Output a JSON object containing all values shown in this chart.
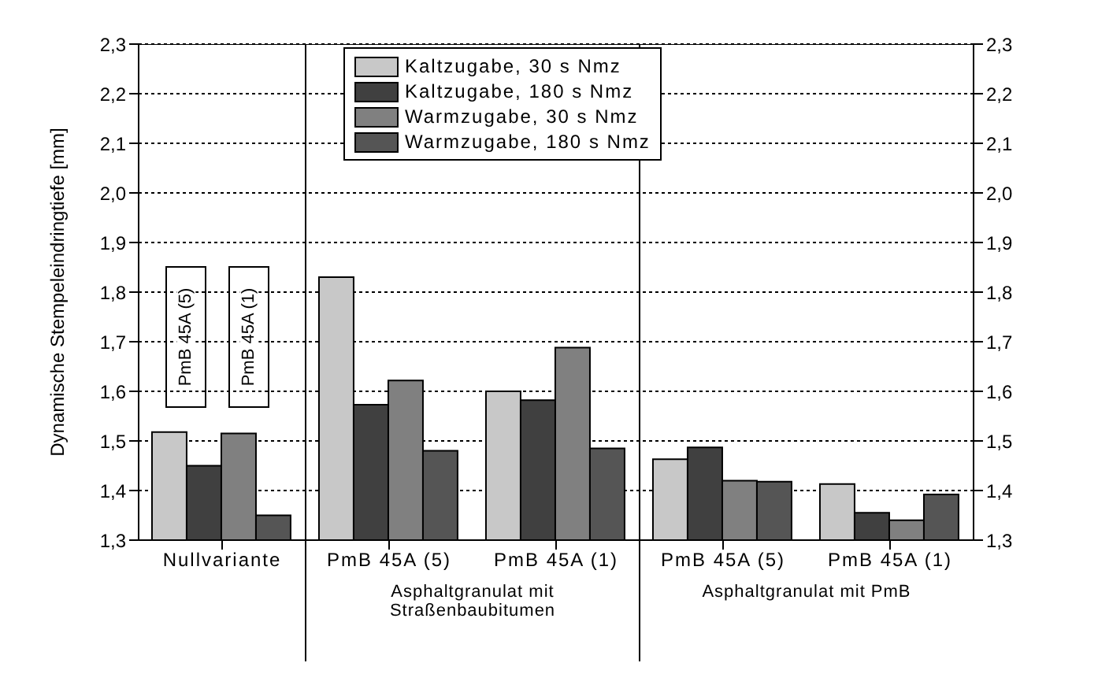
{
  "chart_data": {
    "type": "bar",
    "ylabel": "Dynamische Stempeleindringtiefe [mm]",
    "categories": [
      "Nullvariante",
      "PmB 45A (5)",
      "PmB 45A (1)",
      "PmB 45A (5)",
      "PmB 45A (1)"
    ],
    "series": [
      {
        "name": "Kaltzugabe, 30 s Nmz",
        "color": "#c8c8c8",
        "values": [
          1.518,
          1.83,
          1.6,
          1.463,
          1.413
        ]
      },
      {
        "name": "Kaltzugabe, 180 s Nmz",
        "color": "#404040",
        "values": [
          1.45,
          1.573,
          1.582,
          1.487,
          1.355
        ]
      },
      {
        "name": "Warmzugabe, 30 s Nmz",
        "color": "#808080",
        "values": [
          1.515,
          1.622,
          1.688,
          1.42,
          1.34
        ]
      },
      {
        "name": "Warmzugabe, 180 s Nmz",
        "color": "#555555",
        "values": [
          1.35,
          1.48,
          1.485,
          1.418,
          1.392
        ]
      }
    ],
    "ylim": [
      1.3,
      2.3
    ],
    "yticks": [
      {
        "value": 1.3,
        "label": "1,3"
      },
      {
        "value": 1.4,
        "label": "1,4"
      },
      {
        "value": 1.5,
        "label": "1,5"
      },
      {
        "value": 1.6,
        "label": "1,6"
      },
      {
        "value": 1.7,
        "label": "1,7"
      },
      {
        "value": 1.8,
        "label": "1,8"
      },
      {
        "value": 1.9,
        "label": "1,9"
      },
      {
        "value": 2.0,
        "label": "2,0"
      },
      {
        "value": 2.1,
        "label": "2,1"
      },
      {
        "value": 2.2,
        "label": "2,2"
      },
      {
        "value": 2.3,
        "label": "2,3"
      }
    ],
    "y2lim": [
      1.3,
      2.3
    ],
    "y2ticks": [
      {
        "value": 1.3,
        "label": "1,3"
      },
      {
        "value": 1.4,
        "label": "1,4"
      },
      {
        "value": 1.5,
        "label": "1,5"
      },
      {
        "value": 1.6,
        "label": "1,6"
      },
      {
        "value": 1.7,
        "label": "1,7"
      },
      {
        "value": 1.8,
        "label": "1,8"
      },
      {
        "value": 1.9,
        "label": "1,9"
      },
      {
        "value": 2.0,
        "label": "2,0"
      },
      {
        "value": 2.1,
        "label": "2,1"
      },
      {
        "value": 2.2,
        "label": "2,2"
      },
      {
        "value": 2.3,
        "label": "2,3"
      }
    ],
    "grid": "y",
    "legend": "top",
    "annotations": [
      "PmB 45A (5)",
      "PmB 45A (1)",
      "Asphaltgranulat mit Straßenbaubitumen",
      "Asphaltgranulat mit PmB"
    ]
  }
}
